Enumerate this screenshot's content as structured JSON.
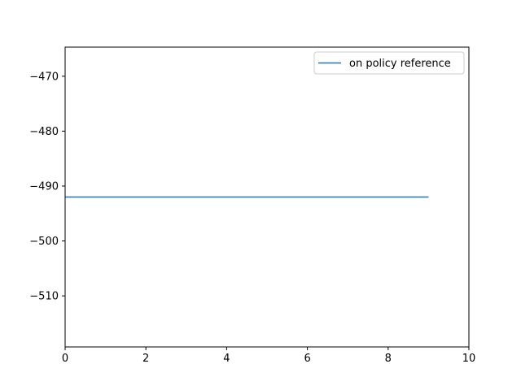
{
  "chart_data": {
    "type": "line",
    "title": "",
    "xlabel": "",
    "ylabel": "",
    "xlim": [
      0,
      10
    ],
    "ylim": [
      -519.3,
      -464.7
    ],
    "x_ticks": [
      0,
      2,
      4,
      6,
      8,
      10
    ],
    "y_ticks": [
      -470,
      -480,
      -490,
      -500,
      -510
    ],
    "x_tick_labels": [
      "0",
      "2",
      "4",
      "6",
      "8",
      "10"
    ],
    "y_tick_labels": [
      "−470",
      "−480",
      "−490",
      "−500",
      "−510"
    ],
    "grid": false,
    "legend_position": "top-right",
    "series": [
      {
        "name": "on policy reference",
        "color": "#1f77b4",
        "x": [
          0,
          1,
          2,
          3,
          4,
          5,
          6,
          7,
          8,
          9
        ],
        "y": [
          -492,
          -492,
          -492,
          -492,
          -492,
          -492,
          -492,
          -492,
          -492,
          -492
        ]
      }
    ]
  }
}
